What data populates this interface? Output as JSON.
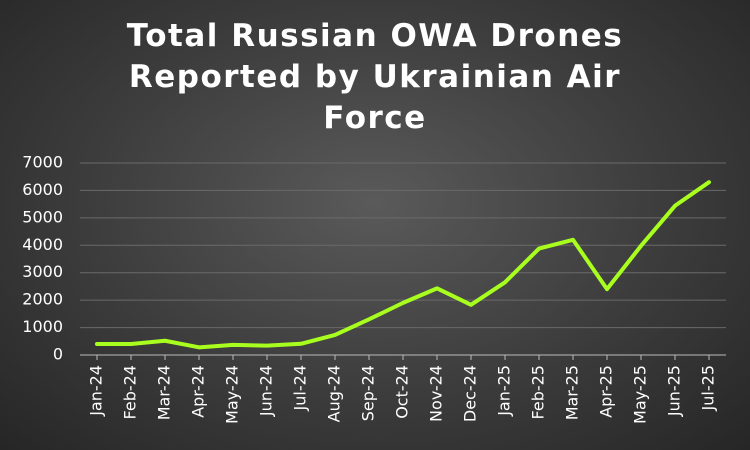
{
  "chart_data": {
    "type": "line",
    "title": "Total Russian OWA Drones Reported by Ukrainian Air Force",
    "categories": [
      "Jan-24",
      "Feb-24",
      "Mar-24",
      "Apr-24",
      "May-24",
      "Jun-24",
      "Jul-24",
      "Aug-24",
      "Sep-24",
      "Oct-24",
      "Nov-24",
      "Dec-24",
      "Jan-25",
      "Feb-25",
      "Mar-25",
      "Apr-25",
      "May-25",
      "Jun-25",
      "Jul-25"
    ],
    "values": [
      400,
      400,
      520,
      280,
      370,
      340,
      410,
      730,
      1300,
      1900,
      2430,
      1830,
      2650,
      3880,
      4200,
      2400,
      3980,
      5440,
      6300
    ],
    "color": "#a8ff1e",
    "ylim": [
      0,
      7000
    ],
    "yticks": [
      0,
      1000,
      2000,
      3000,
      4000,
      5000,
      6000,
      7000
    ],
    "grid": true
  }
}
